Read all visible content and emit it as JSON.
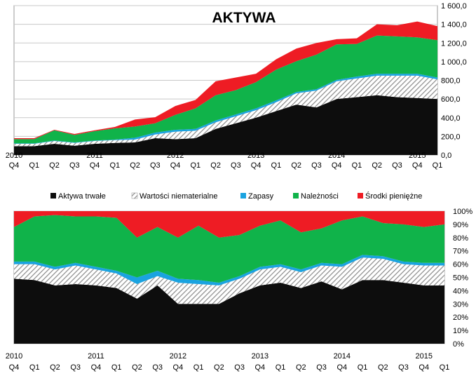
{
  "colors": {
    "Aktywa trwałe": "#0d0d0d",
    "Wartości niematerialne": "#bdbdbd",
    "Zapasy": "#1aa3e0",
    "Należności": "#10b34a",
    "Środki pieniężne": "#ee1c24"
  },
  "chart_data": [
    {
      "type": "area",
      "title": "AKTYWA",
      "stacked": true,
      "ylim": [
        0,
        1600
      ],
      "y_ticks": [
        "0,0",
        "200,0",
        "400,0",
        "600,0",
        "800,0",
        "1 000,0",
        "1 200,0",
        "1 400,0",
        "1 600,0"
      ],
      "grid": "horizontal",
      "y_axis_side": "right",
      "quarters": [
        "Q4",
        "Q1",
        "Q2",
        "Q3",
        "Q4",
        "Q1",
        "Q2",
        "Q3",
        "Q4",
        "Q1",
        "Q2",
        "Q3",
        "Q4",
        "Q1",
        "Q2",
        "Q3",
        "Q4",
        "Q1",
        "Q2",
        "Q3",
        "Q4",
        "Q1"
      ],
      "years": [
        {
          "label": "2010",
          "at": 0
        },
        {
          "label": "2011",
          "at": 4
        },
        {
          "label": "2012",
          "at": 8
        },
        {
          "label": "2013",
          "at": 12
        },
        {
          "label": "2014",
          "at": 16
        },
        {
          "label": "2015",
          "at": 20
        }
      ],
      "series": [
        {
          "name": "Aktywa trwałe",
          "values": [
            95,
            95,
            120,
            100,
            120,
            130,
            135,
            180,
            170,
            180,
            280,
            340,
            400,
            470,
            540,
            510,
            600,
            620,
            640,
            620,
            610,
            600
          ]
        },
        {
          "name": "Wartości niematerialne",
          "values": [
            25,
            25,
            30,
            30,
            30,
            30,
            30,
            40,
            80,
            80,
            70,
            75,
            80,
            95,
            120,
            180,
            190,
            200,
            210,
            230,
            240,
            210
          ]
        },
        {
          "name": "Zapasy",
          "values": [
            5,
            5,
            5,
            5,
            5,
            5,
            20,
            20,
            20,
            20,
            20,
            20,
            20,
            20,
            15,
            15,
            15,
            20,
            20,
            20,
            20,
            20
          ]
        },
        {
          "name": "Należności",
          "values": [
            45,
            45,
            110,
            80,
            100,
            120,
            120,
            100,
            160,
            220,
            270,
            260,
            280,
            330,
            330,
            370,
            380,
            350,
            410,
            400,
            390,
            400
          ]
        },
        {
          "name": "Środki pieniężne",
          "values": [
            10,
            10,
            5,
            10,
            10,
            15,
            75,
            65,
            95,
            90,
            150,
            135,
            90,
            110,
            135,
            125,
            55,
            60,
            120,
            120,
            170,
            150
          ]
        }
      ]
    },
    {
      "type": "area",
      "stacked": true,
      "normalized": true,
      "ylim": [
        0,
        100
      ],
      "y_ticks": [
        "0%",
        "10%",
        "20%",
        "30%",
        "40%",
        "50%",
        "60%",
        "70%",
        "80%",
        "90%",
        "100%"
      ],
      "grid": "horizontal",
      "y_axis_side": "right",
      "quarters": [
        "Q4",
        "Q1",
        "Q2",
        "Q3",
        "Q4",
        "Q1",
        "Q2",
        "Q3",
        "Q4",
        "Q1",
        "Q2",
        "Q3",
        "Q4",
        "Q1",
        "Q2",
        "Q3",
        "Q4",
        "Q1",
        "Q2",
        "Q3",
        "Q4",
        "Q1"
      ],
      "years": [
        {
          "label": "2010",
          "at": 0
        },
        {
          "label": "2011",
          "at": 4
        },
        {
          "label": "2012",
          "at": 8
        },
        {
          "label": "2013",
          "at": 12
        },
        {
          "label": "2014",
          "at": 16
        },
        {
          "label": "2015",
          "at": 20
        }
      ],
      "series": [
        {
          "name": "Aktywa trwałe",
          "values": [
            49,
            48,
            44,
            45,
            44,
            42,
            34,
            44,
            30,
            30,
            30,
            38,
            44,
            46,
            42,
            47,
            41,
            48,
            48,
            46,
            44,
            44
          ]
        },
        {
          "name": "Wartości niematerialne",
          "values": [
            11,
            12,
            12,
            14,
            12,
            11,
            11,
            7,
            16,
            15,
            14,
            11,
            12,
            12,
            12,
            12,
            17,
            17,
            16,
            14,
            15,
            15
          ]
        },
        {
          "name": "Zapasy",
          "values": [
            2,
            2,
            2,
            2,
            2,
            2,
            5,
            4,
            3,
            3,
            2,
            2,
            2,
            2,
            2,
            2,
            2,
            2,
            2,
            2,
            2,
            2
          ]
        },
        {
          "name": "Należności",
          "values": [
            26,
            34,
            39,
            35,
            38,
            40,
            30,
            33,
            31,
            41,
            34,
            31,
            31,
            33,
            28,
            26,
            33,
            29,
            25,
            28,
            27,
            29
          ]
        },
        {
          "name": "Środki pieniężne",
          "values": [
            12,
            4,
            3,
            4,
            4,
            5,
            20,
            12,
            20,
            11,
            20,
            18,
            11,
            7,
            16,
            13,
            7,
            4,
            9,
            10,
            12,
            10
          ]
        }
      ]
    }
  ],
  "legend": [
    "Aktywa trwałe",
    "Wartości niematerialne",
    "Zapasy",
    "Należności",
    "Środki pieniężne"
  ]
}
